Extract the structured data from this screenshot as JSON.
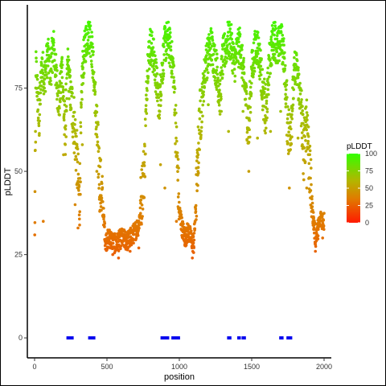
{
  "chart_data": {
    "type": "scatter",
    "title": "",
    "xlabel": "position",
    "ylabel": "pLDDT",
    "xlim": [
      -50,
      2050
    ],
    "ylim": [
      -6,
      100
    ],
    "x_ticks": [
      0,
      500,
      1000,
      1500,
      2000
    ],
    "y_ticks": [
      0,
      25,
      50,
      75
    ],
    "grid": false,
    "legend": {
      "title": "pLDDT",
      "placement": "right",
      "ticks": [
        0,
        25,
        50,
        75,
        100
      ],
      "gradient": [
        {
          "value": 0,
          "color": "#ff1a00"
        },
        {
          "value": 35,
          "color": "#e07b00"
        },
        {
          "value": 60,
          "color": "#b5b400"
        },
        {
          "value": 100,
          "color": "#33ff00"
        }
      ]
    },
    "profile": [
      [
        1,
        30
      ],
      [
        10,
        82
      ],
      [
        30,
        65
      ],
      [
        50,
        82
      ],
      [
        70,
        78
      ],
      [
        90,
        85
      ],
      [
        110,
        80
      ],
      [
        130,
        88
      ],
      [
        150,
        78
      ],
      [
        170,
        70
      ],
      [
        190,
        82
      ],
      [
        210,
        60
      ],
      [
        230,
        82
      ],
      [
        250,
        72
      ],
      [
        270,
        66
      ],
      [
        290,
        55
      ],
      [
        310,
        40
      ],
      [
        330,
        80
      ],
      [
        350,
        88
      ],
      [
        370,
        92
      ],
      [
        390,
        90
      ],
      [
        410,
        78
      ],
      [
        430,
        62
      ],
      [
        450,
        48
      ],
      [
        470,
        40
      ],
      [
        490,
        29
      ],
      [
        520,
        30
      ],
      [
        560,
        28
      ],
      [
        600,
        30
      ],
      [
        640,
        29
      ],
      [
        680,
        31
      ],
      [
        720,
        34
      ],
      [
        740,
        43
      ],
      [
        760,
        52
      ],
      [
        780,
        82
      ],
      [
        800,
        88
      ],
      [
        820,
        85
      ],
      [
        840,
        78
      ],
      [
        860,
        70
      ],
      [
        880,
        80
      ],
      [
        900,
        88
      ],
      [
        920,
        90
      ],
      [
        940,
        86
      ],
      [
        960,
        80
      ],
      [
        980,
        58
      ],
      [
        1000,
        38
      ],
      [
        1020,
        33
      ],
      [
        1040,
        30
      ],
      [
        1060,
        32
      ],
      [
        1080,
        30
      ],
      [
        1100,
        28
      ],
      [
        1120,
        45
      ],
      [
        1140,
        65
      ],
      [
        1160,
        72
      ],
      [
        1180,
        82
      ],
      [
        1200,
        85
      ],
      [
        1220,
        88
      ],
      [
        1240,
        84
      ],
      [
        1260,
        80
      ],
      [
        1280,
        72
      ],
      [
        1300,
        84
      ],
      [
        1320,
        87
      ],
      [
        1340,
        90
      ],
      [
        1360,
        88
      ],
      [
        1380,
        82
      ],
      [
        1400,
        86
      ],
      [
        1420,
        88
      ],
      [
        1440,
        80
      ],
      [
        1460,
        72
      ],
      [
        1480,
        62
      ],
      [
        1500,
        80
      ],
      [
        1520,
        86
      ],
      [
        1540,
        88
      ],
      [
        1560,
        82
      ],
      [
        1580,
        72
      ],
      [
        1600,
        66
      ],
      [
        1620,
        82
      ],
      [
        1640,
        88
      ],
      [
        1660,
        90
      ],
      [
        1680,
        86
      ],
      [
        1700,
        90
      ],
      [
        1720,
        86
      ],
      [
        1740,
        70
      ],
      [
        1760,
        60
      ],
      [
        1780,
        70
      ],
      [
        1800,
        82
      ],
      [
        1820,
        78
      ],
      [
        1840,
        70
      ],
      [
        1860,
        55
      ],
      [
        1880,
        68
      ],
      [
        1900,
        50
      ],
      [
        1920,
        38
      ],
      [
        1940,
        30
      ],
      [
        1960,
        33
      ],
      [
        1980,
        36
      ],
      [
        2000,
        35
      ]
    ],
    "dips": [
      [
        60,
        35
      ],
      [
        200,
        55
      ],
      [
        280,
        40
      ],
      [
        300,
        33
      ],
      [
        330,
        58
      ],
      [
        430,
        50
      ],
      [
        450,
        38
      ],
      [
        540,
        25
      ],
      [
        580,
        24
      ],
      [
        660,
        26
      ],
      [
        720,
        27
      ],
      [
        870,
        52
      ],
      [
        900,
        45
      ],
      [
        980,
        35
      ],
      [
        1010,
        38
      ],
      [
        1090,
        24
      ],
      [
        1130,
        55
      ],
      [
        1200,
        70
      ],
      [
        1290,
        68
      ],
      [
        1340,
        62
      ],
      [
        1440,
        68
      ],
      [
        1480,
        50
      ],
      [
        1540,
        60
      ],
      [
        1630,
        62
      ],
      [
        1700,
        68
      ],
      [
        1760,
        45
      ],
      [
        1820,
        60
      ],
      [
        1850,
        58
      ],
      [
        1880,
        45
      ],
      [
        1940,
        26
      ],
      [
        1990,
        30
      ]
    ],
    "annotated_segments": {
      "y": 0,
      "color": "#0000ee",
      "ranges": [
        [
          220,
          270
        ],
        [
          370,
          420
        ],
        [
          870,
          930
        ],
        [
          945,
          1005
        ],
        [
          1330,
          1360
        ],
        [
          1400,
          1425
        ],
        [
          1430,
          1460
        ],
        [
          1690,
          1720
        ],
        [
          1740,
          1780
        ]
      ]
    }
  }
}
